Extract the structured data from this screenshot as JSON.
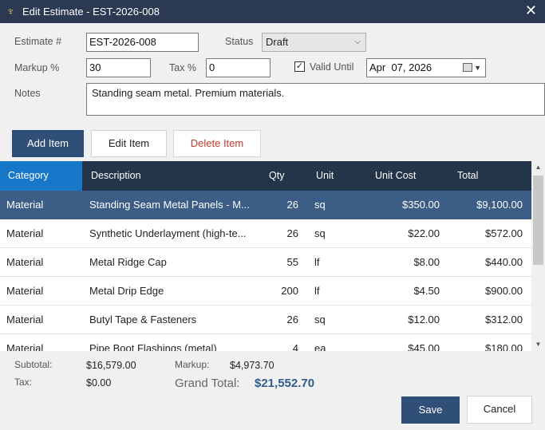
{
  "window": {
    "title": "Edit Estimate - EST-2026-008",
    "close_glyph": "✕"
  },
  "form": {
    "estimate_label": "Estimate #",
    "estimate_value": "EST-2026-008",
    "status_label": "Status",
    "status_value": "Draft",
    "markup_label": "Markup %",
    "markup_value": "30",
    "tax_label": "Tax %",
    "tax_value": "0",
    "valid_until_label": "Valid Until",
    "valid_until_checked": true,
    "valid_until_value": "Apr  07, 2026",
    "notes_label": "Notes",
    "notes_value": "Standing seam metal. Premium materials."
  },
  "toolbar": {
    "add_label": "Add Item",
    "edit_label": "Edit Item",
    "delete_label": "Delete Item"
  },
  "grid": {
    "columns": [
      "Category",
      "Description",
      "Qty",
      "Unit",
      "Unit Cost",
      "Total"
    ],
    "rows": [
      {
        "category": "Material",
        "description": "Standing Seam Metal Panels - M...",
        "qty": "26",
        "unit": "sq",
        "unit_cost": "$350.00",
        "total": "$9,100.00"
      },
      {
        "category": "Material",
        "description": "Synthetic Underlayment (high-te...",
        "qty": "26",
        "unit": "sq",
        "unit_cost": "$22.00",
        "total": "$572.00"
      },
      {
        "category": "Material",
        "description": "Metal Ridge Cap",
        "qty": "55",
        "unit": "lf",
        "unit_cost": "$8.00",
        "total": "$440.00"
      },
      {
        "category": "Material",
        "description": "Metal Drip Edge",
        "qty": "200",
        "unit": "lf",
        "unit_cost": "$4.50",
        "total": "$900.00"
      },
      {
        "category": "Material",
        "description": "Butyl Tape & Fasteners",
        "qty": "26",
        "unit": "sq",
        "unit_cost": "$12.00",
        "total": "$312.00"
      },
      {
        "category": "Material",
        "description": "Pipe Boot Flashings (metal)",
        "qty": "4",
        "unit": "ea",
        "unit_cost": "$45.00",
        "total": "$180.00"
      }
    ]
  },
  "summary": {
    "subtotal_label": "Subtotal:",
    "subtotal_value": "$16,579.00",
    "tax_label": "Tax:",
    "tax_value": "$0.00",
    "markup_label": "Markup:",
    "markup_value": "$4,973.70",
    "grand_total_label": "Grand Total:",
    "grand_total_value": "$21,552.70"
  },
  "footer": {
    "save_label": "Save",
    "cancel_label": "Cancel"
  }
}
